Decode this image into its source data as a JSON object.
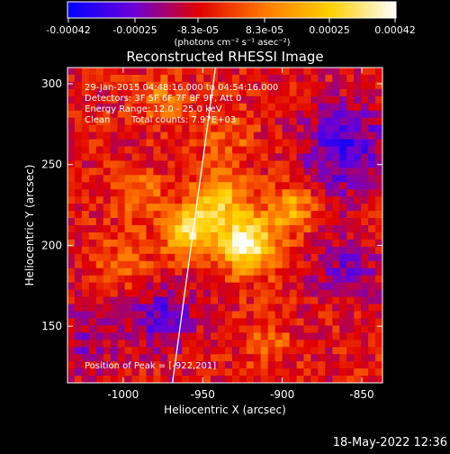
{
  "image_title": "Reconstructed RHESSI Image",
  "footer_timestamp": "18-May-2022 12:36",
  "colorbar": {
    "tick_labels": [
      "-0.00042",
      "-0.00025",
      "-8.3e-05",
      "8.3e-05",
      "0.00025",
      "0.00042"
    ],
    "unit_label": "(photons cm⁻² s⁻¹ asec⁻²)",
    "range": [
      -0.00042,
      0.00042
    ],
    "stops": [
      "#0000ff",
      "#6a00d8",
      "#e00000",
      "#ff7a00",
      "#ffd000",
      "#ffffff"
    ]
  },
  "annotations": {
    "time_range": "29-Jan-2015 04:48:16.000 to 04:54:16.000",
    "detectors": "Detectors: 3F 5F 6F 7F 8F 9F, Att 0",
    "energy_range": "Energy Range: 12.0 - 25.0 keV",
    "method": "Clean",
    "total_counts": "Total counts: 7.97E+03",
    "peak_position": "Position of Peak = [-922,201]"
  },
  "chart_data": {
    "type": "heatmap",
    "title": "Reconstructed RHESSI Image",
    "xlabel": "Heliocentric X (arcsec)",
    "ylabel": "Heliocentric Y (arcsec)",
    "xlim": [
      -1035,
      -837
    ],
    "ylim": [
      115,
      310
    ],
    "xticks": [
      -1000,
      -950,
      -900,
      -850
    ],
    "yticks": [
      150,
      200,
      250,
      300
    ],
    "xtick_labels": [
      "-1000",
      "-950",
      "-900",
      "-850"
    ],
    "ytick_labels": [
      "150",
      "200",
      "250",
      "300"
    ],
    "peak": {
      "x": -922,
      "y": 201
    },
    "limb_line": [
      [
        -969,
        115
      ],
      [
        -942,
        310
      ]
    ],
    "hot_spots": [
      {
        "x": -922,
        "y": 201,
        "weight": 1.0,
        "sigma": 12
      },
      {
        "x": -958,
        "y": 208,
        "weight": 0.8,
        "sigma": 11
      },
      {
        "x": -940,
        "y": 228,
        "weight": 0.6,
        "sigma": 12
      },
      {
        "x": -895,
        "y": 223,
        "weight": 0.55,
        "sigma": 10
      },
      {
        "x": -990,
        "y": 232,
        "weight": 0.35,
        "sigma": 10
      },
      {
        "x": -975,
        "y": 290,
        "weight": 0.3,
        "sigma": 10
      },
      {
        "x": -935,
        "y": 268,
        "weight": 0.25,
        "sigma": 12
      },
      {
        "x": -1000,
        "y": 190,
        "weight": 0.25,
        "sigma": 12
      },
      {
        "x": -910,
        "y": 140,
        "weight": 0.25,
        "sigma": 10
      }
    ],
    "cold_regions": [
      {
        "x": -860,
        "y": 260,
        "weight": 0.8,
        "sigma": 20
      },
      {
        "x": -975,
        "y": 155,
        "weight": 0.7,
        "sigma": 14
      },
      {
        "x": -860,
        "y": 185,
        "weight": 0.5,
        "sigma": 15
      },
      {
        "x": -1025,
        "y": 140,
        "weight": 0.4,
        "sigma": 15
      }
    ]
  }
}
